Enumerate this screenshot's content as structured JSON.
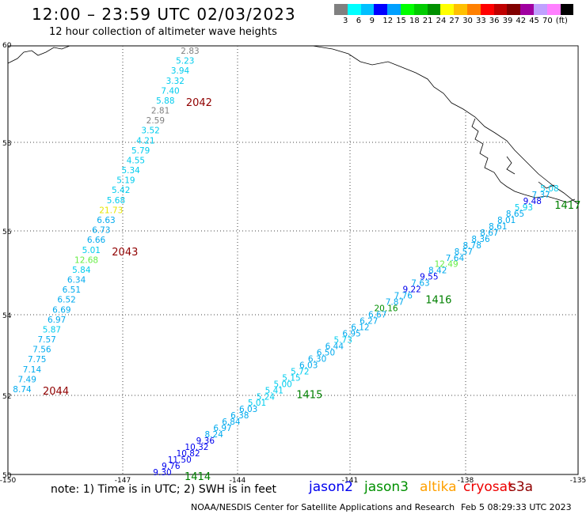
{
  "title": "12:00 – 23:59 UTC 02/03/2023",
  "subtitle": "12 hour collection of altimeter wave heights",
  "legend": {
    "colors": [
      "#808080",
      "#00ffff",
      "#00c0ff",
      "#0000ff",
      "#00a0ff",
      "#00ff00",
      "#00cc00",
      "#009000",
      "#ffff00",
      "#ffc000",
      "#ff8000",
      "#ff0000",
      "#c00000",
      "#800000",
      "#a000a0",
      "#c0a0ff",
      "#ff80ff",
      "#000000"
    ],
    "labels": [
      "3",
      "6",
      "9",
      "12",
      "15",
      "18",
      "21",
      "24",
      "27",
      "30",
      "33",
      "36",
      "39",
      "42",
      "45",
      "70",
      "(ft)"
    ]
  },
  "axes": {
    "lat_ticks": [
      "60",
      "58",
      "56",
      "54",
      "52",
      "50"
    ],
    "lon_ticks": [
      "-150",
      "-147",
      "-144",
      "-141",
      "-138",
      "-135"
    ]
  },
  "tracks": {
    "west": {
      "values": [
        {
          "v": "2.83",
          "c": "#808080"
        },
        {
          "v": "5.23",
          "c": "#00ccee"
        },
        {
          "v": "3.94",
          "c": "#00ccee"
        },
        {
          "v": "3.32",
          "c": "#00ccee"
        },
        {
          "v": "7.40",
          "c": "#00ccee"
        },
        {
          "v": "5.88",
          "c": "#00ccee"
        },
        {
          "v": "2.81",
          "c": "#808080"
        },
        {
          "v": "2.59",
          "c": "#808080"
        },
        {
          "v": "3.52",
          "c": "#00ccee"
        },
        {
          "v": "4.21",
          "c": "#00ccee"
        },
        {
          "v": "5.79",
          "c": "#00ccee"
        },
        {
          "v": "4.55",
          "c": "#00ccee"
        },
        {
          "v": "5.34",
          "c": "#00ccee"
        },
        {
          "v": "5.19",
          "c": "#00ccee"
        },
        {
          "v": "5.42",
          "c": "#00ccee"
        },
        {
          "v": "5.68",
          "c": "#00ccee"
        },
        {
          "v": "21.73",
          "c": "#e6e600"
        },
        {
          "v": "6.63",
          "c": "#00aaee"
        },
        {
          "v": "6.73",
          "c": "#00aaee"
        },
        {
          "v": "6.66",
          "c": "#00aaee"
        },
        {
          "v": "5.01",
          "c": "#00ccee"
        },
        {
          "v": "12.68",
          "c": "#66ee44"
        },
        {
          "v": "5.84",
          "c": "#00ccee"
        },
        {
          "v": "6.34",
          "c": "#00aaee"
        },
        {
          "v": "6.51",
          "c": "#00aaee"
        },
        {
          "v": "6.52",
          "c": "#00aaee"
        },
        {
          "v": "6.69",
          "c": "#00aaee"
        },
        {
          "v": "6.97",
          "c": "#00aaee"
        },
        {
          "v": "5.87",
          "c": "#00ccee"
        },
        {
          "v": "7.57",
          "c": "#00aaee"
        },
        {
          "v": "7.56",
          "c": "#00aaee"
        },
        {
          "v": "7.75",
          "c": "#00aaee"
        },
        {
          "v": "7.14",
          "c": "#00aaee"
        },
        {
          "v": "7.49",
          "c": "#00aaee"
        },
        {
          "v": "8.74",
          "c": "#00aaee"
        }
      ],
      "times": [
        {
          "label": "2042",
          "after": 5
        },
        {
          "label": "2043",
          "after": 20
        },
        {
          "label": "2044",
          "after": 34
        }
      ]
    },
    "east": {
      "values": [
        {
          "v": "5.08",
          "c": "#00ccee"
        },
        {
          "v": "7.37",
          "c": "#00aaee"
        },
        {
          "v": "9.48",
          "c": "#0000ee"
        },
        {
          "v": "5.93",
          "c": "#00ccee"
        },
        {
          "v": "8.65",
          "c": "#00aaee"
        },
        {
          "v": "8.01",
          "c": "#00aaee"
        },
        {
          "v": "8.61",
          "c": "#00aaee"
        },
        {
          "v": "8.67",
          "c": "#00aaee"
        },
        {
          "v": "8.36",
          "c": "#00aaee"
        },
        {
          "v": "8.78",
          "c": "#00aaee"
        },
        {
          "v": "8.57",
          "c": "#00aaee"
        },
        {
          "v": "7.64",
          "c": "#00aaee"
        },
        {
          "v": "12.49",
          "c": "#66ee44"
        },
        {
          "v": "8.42",
          "c": "#00aaee"
        },
        {
          "v": "9.55",
          "c": "#0000ee"
        },
        {
          "v": "7.63",
          "c": "#00aaee"
        },
        {
          "v": "9.22",
          "c": "#0000ee"
        },
        {
          "v": "7.76",
          "c": "#00aaee"
        },
        {
          "v": "7.87",
          "c": "#00aaee"
        },
        {
          "v": "20.16",
          "c": "#009000"
        },
        {
          "v": "6.67",
          "c": "#00aaee"
        },
        {
          "v": "6.27",
          "c": "#00aaee"
        },
        {
          "v": "6.12",
          "c": "#00aaee"
        },
        {
          "v": "6.95",
          "c": "#00aaee"
        },
        {
          "v": "5.73",
          "c": "#00ccee"
        },
        {
          "v": "6.44",
          "c": "#00aaee"
        },
        {
          "v": "6.50",
          "c": "#00aaee"
        },
        {
          "v": "6.30",
          "c": "#00aaee"
        },
        {
          "v": "6.03",
          "c": "#00aaee"
        },
        {
          "v": "5.72",
          "c": "#00ccee"
        },
        {
          "v": "5.15",
          "c": "#00ccee"
        },
        {
          "v": "5.00",
          "c": "#00ccee"
        },
        {
          "v": "5.41",
          "c": "#00ccee"
        },
        {
          "v": "5.24",
          "c": "#00ccee"
        },
        {
          "v": "5.01",
          "c": "#00ccee"
        },
        {
          "v": "6.03",
          "c": "#00aaee"
        },
        {
          "v": "6.38",
          "c": "#00aaee"
        },
        {
          "v": "6.84",
          "c": "#00aaee"
        },
        {
          "v": "6.97",
          "c": "#00aaee"
        },
        {
          "v": "8.24",
          "c": "#00aaee"
        },
        {
          "v": "9.36",
          "c": "#0000ee"
        },
        {
          "v": "10.32",
          "c": "#0000ee"
        },
        {
          "v": "10.82",
          "c": "#0000ee"
        },
        {
          "v": "11.50",
          "c": "#0000ee"
        },
        {
          "v": "9.76",
          "c": "#0000ee"
        },
        {
          "v": "9.30",
          "c": "#0000ee"
        }
      ],
      "times": [
        {
          "label": "1417",
          "after": 2
        },
        {
          "label": "1416",
          "after": 17
        },
        {
          "label": "1415",
          "after": 32
        },
        {
          "label": "1414",
          "after": 45
        }
      ]
    }
  },
  "note": "note: 1) Time is in UTC; 2) SWH is in feet",
  "satellites": [
    {
      "name": "jason2",
      "color": "#0000ee"
    },
    {
      "name": "jason3",
      "color": "#009000"
    },
    {
      "name": "altika",
      "color": "#ffa000"
    },
    {
      "name": "cryosat",
      "color": "#ee0000"
    },
    {
      "name": "s3a",
      "color": "#900000"
    }
  ],
  "credit": "NOAA/NESDIS Center for Satellite Applications and Research",
  "generated": "Feb  5 08:29:33 UTC 2023"
}
